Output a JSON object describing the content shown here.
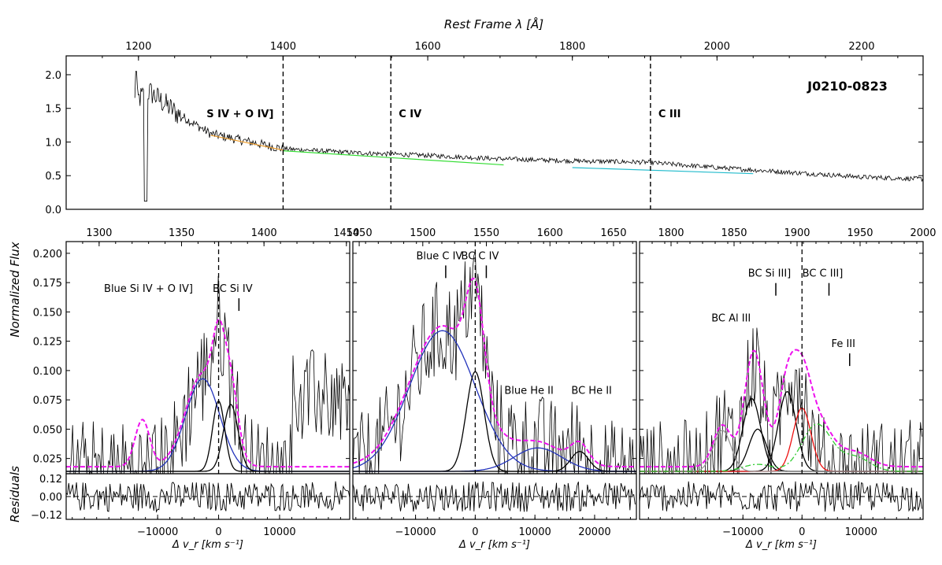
{
  "chart_data": [
    {
      "id": "overview",
      "type": "line",
      "object_name": "J0210-0823",
      "top_axis_label": "Rest Frame λ [Å]",
      "x_ticks": [
        1200,
        1400,
        1600,
        1800,
        2000,
        2200
      ],
      "xlim": [
        1100,
        2285
      ],
      "y_ticks": [
        "0.0",
        "0.5",
        "1.0",
        "1.5",
        "2.0"
      ],
      "ylim": [
        0.0,
        2.28
      ],
      "region_lines": [
        {
          "x": 1400,
          "label": "S IV + O IV]"
        },
        {
          "x": 1549,
          "label": "C IV"
        },
        {
          "x": 1908,
          "label": "C III"
        }
      ],
      "series": [
        {
          "name": "spectrum",
          "color": "#000000",
          "x_range": [
            1195,
            2285
          ],
          "values_at_knots": {
            "x": [
              1195,
              1215,
              1250,
              1300,
              1400,
              1500,
              1600,
              1700,
              1800,
              1900,
              2000,
              2100,
              2200,
              2285
            ],
            "y": [
              1.6,
              1.75,
              1.45,
              1.12,
              0.9,
              0.84,
              0.8,
              0.75,
              0.72,
              0.7,
              0.62,
              0.55,
              0.48,
              0.45
            ]
          }
        },
        {
          "name": "continuum_1",
          "color": "#f0a030",
          "x": [
            1300,
            1400
          ],
          "y": [
            1.1,
            0.88
          ]
        },
        {
          "name": "continuum_2",
          "color": "#33dd33",
          "x": [
            1400,
            1705
          ],
          "y": [
            0.87,
            0.66
          ]
        },
        {
          "name": "continuum_3",
          "color": "#22bbcc",
          "x": [
            1800,
            2050
          ],
          "y": [
            0.62,
            0.53
          ]
        }
      ]
    },
    {
      "id": "si_iv_panel",
      "type": "line",
      "top_ticks": [
        "1300",
        "1350",
        "1400",
        "1450"
      ],
      "top_ticks_wavelength": [
        1300,
        1350,
        1400,
        1450
      ],
      "x_ticks": [
        "−10000",
        "0",
        "10000"
      ],
      "x_tick_values": [
        -10000,
        0,
        10000
      ],
      "xlim_velocity": [
        -25000,
        21500
      ],
      "xlabel": "Δ v_r [km s⁻¹]",
      "ylim": [
        0.012,
        0.21
      ],
      "annotations": [
        {
          "text": "Blue Si IV + O IV]",
          "x": -11500,
          "y": 0.167
        },
        {
          "text": "BC Si IV",
          "x": 2300,
          "y": 0.167,
          "marker": true
        }
      ],
      "components": [
        {
          "name": "Blue Si IV + O IV]",
          "color": "#2233bb",
          "center": -2600,
          "height": 0.079,
          "width": 2800
        },
        {
          "name": "BC Si IV",
          "color": "#000000",
          "center": 0,
          "height": 0.06,
          "width": 1000
        },
        {
          "name": "BC Si IV companion",
          "color": "#000000",
          "center": 2000,
          "height": 0.057,
          "width": 1200
        },
        {
          "name": "Total fit",
          "color": "#ee11ee",
          "style": "dashed"
        }
      ]
    },
    {
      "id": "c_iv_panel",
      "type": "line",
      "top_ticks": [
        "1450",
        "1500",
        "1550",
        "1600",
        "1650"
      ],
      "top_ticks_wavelength": [
        1450,
        1500,
        1550,
        1600,
        1650
      ],
      "x_ticks": [
        "−10000",
        "0",
        "10000",
        "20000"
      ],
      "x_tick_values": [
        -10000,
        0,
        10000,
        20000
      ],
      "xlim_velocity": [
        -20500,
        27000
      ],
      "xlabel": "Δ v_r [km s⁻¹]",
      "ylim": [
        0.012,
        0.21
      ],
      "annotations": [
        {
          "text": "Blue C IV",
          "x": -6000,
          "y": 0.195,
          "marker": true
        },
        {
          "text": "BC C IV",
          "x": 800,
          "y": 0.195,
          "marker": true
        },
        {
          "text": "Blue He II",
          "x": 9000,
          "y": 0.08
        },
        {
          "text": "BC He II",
          "x": 19500,
          "y": 0.08
        }
      ],
      "components": [
        {
          "name": "Blue C IV",
          "color": "#2233bb",
          "center": -5500,
          "height": 0.12,
          "width": 5500
        },
        {
          "name": "BC C IV",
          "color": "#000000",
          "center": 0,
          "height": 0.085,
          "width": 1500
        },
        {
          "name": "Blue He II",
          "color": "#2233bb",
          "center": 10500,
          "height": 0.02,
          "width": 4000
        },
        {
          "name": "BC He II",
          "color": "#000000",
          "center": 17500,
          "height": 0.017,
          "width": 1500
        },
        {
          "name": "Total fit",
          "color": "#ee11ee",
          "style": "dashed"
        }
      ]
    },
    {
      "id": "c_iii_panel",
      "type": "line",
      "top_ticks": [
        "1800",
        "1850",
        "1900",
        "1950",
        "2000"
      ],
      "top_ticks_wavelength": [
        1800,
        1850,
        1900,
        1950,
        2000
      ],
      "x_ticks": [
        "−10000",
        "0",
        "10000"
      ],
      "x_tick_values": [
        -10000,
        0,
        10000
      ],
      "xlim_velocity": [
        -27500,
        20500
      ],
      "xlabel": "Δ v_r [km s⁻¹]",
      "ylim": [
        0.012,
        0.21
      ],
      "annotations": [
        {
          "text": "BC Al III",
          "x": -12000,
          "y": 0.142
        },
        {
          "text": "BC Si III]",
          "x": -5500,
          "y": 0.18,
          "marker": true
        },
        {
          "text": "BC C III]",
          "x": 3500,
          "y": 0.18,
          "marker": true
        },
        {
          "text": "Fe III",
          "x": 7000,
          "y": 0.12,
          "marker": true
        }
      ],
      "components": [
        {
          "name": "BC Al III (1)",
          "color": "#000000",
          "center": -8500,
          "height": 0.062,
          "width": 1500
        },
        {
          "name": "BC Al III (2)",
          "color": "#000000",
          "center": -7500,
          "height": 0.036,
          "width": 1500
        },
        {
          "name": "BC Si III]",
          "color": "#000000",
          "center": -2500,
          "height": 0.068,
          "width": 1500
        },
        {
          "name": "BC C III]",
          "color": "#ee1111",
          "center": 0,
          "height": 0.054,
          "width": 1500
        },
        {
          "name": "Fe III",
          "color": "#33cc33",
          "style": "dash-dot"
        },
        {
          "name": "Grey component",
          "color": "#999999",
          "center": -13500,
          "height": 0.035,
          "width": 1500
        },
        {
          "name": "Total fit",
          "color": "#ee11ee",
          "style": "dashed"
        }
      ]
    }
  ],
  "labels": {
    "y_main": "Normalized Flux",
    "y_resid": "Residuals",
    "flux_ticks": [
      "0.025",
      "0.050",
      "0.075",
      "0.100",
      "0.125",
      "0.150",
      "0.175",
      "0.200"
    ],
    "flux_tick_values": [
      0.025,
      0.05,
      0.075,
      0.1,
      0.125,
      0.15,
      0.175,
      0.2
    ],
    "resid_ticks": [
      "0.12",
      "0.00",
      "−0.12"
    ],
    "resid_tick_values": [
      0.12,
      0.0,
      -0.12
    ]
  }
}
